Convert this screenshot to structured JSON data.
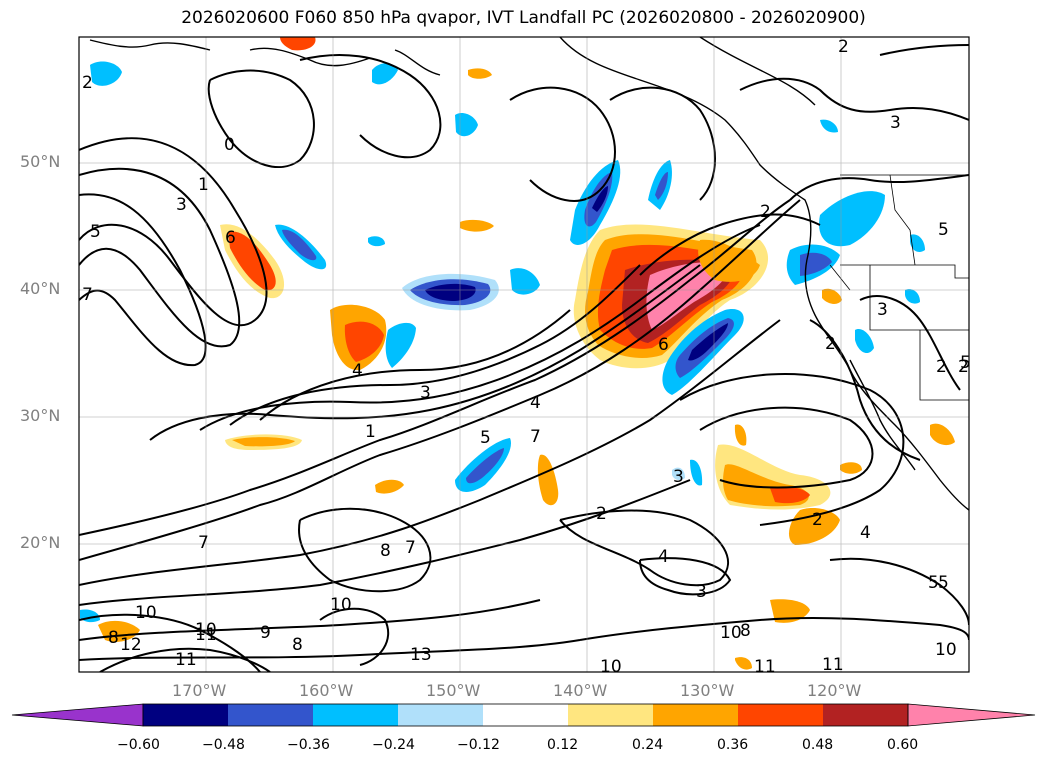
{
  "title": "2026020600 F060 850 hPa qvapor, IVT Landfall PC (2026020800 - 2026020900)",
  "lat_labels": [
    "50°N",
    "40°N",
    "30°N",
    "20°N"
  ],
  "lon_labels": [
    "170°W",
    "160°W",
    "150°W",
    "140°W",
    "130°W",
    "120°W"
  ],
  "colorbar": {
    "ticks": [
      "−0.60",
      "−0.48",
      "−0.36",
      "−0.24",
      "−0.12",
      "0.12",
      "0.24",
      "0.36",
      "0.48",
      "0.60"
    ],
    "colors": [
      "#9933cc",
      "#000080",
      "#3355cc",
      "#00bfff",
      "#b0e0fa",
      "#ffffff",
      "#ffe680",
      "#ffa500",
      "#ff4500",
      "#b22222",
      "#ff82ab"
    ]
  },
  "contour_labels": [
    "2",
    "2",
    "5",
    "0",
    "1",
    "3",
    "6",
    "7",
    "2",
    "2",
    "4",
    "3",
    "4",
    "1",
    "5",
    "7",
    "3",
    "2",
    "2",
    "6",
    "3",
    "4",
    "3",
    "4",
    "5",
    "3",
    "2",
    "2",
    "5",
    "5",
    "7",
    "8",
    "7",
    "10",
    "10",
    "10",
    "9",
    "8",
    "12",
    "11",
    "13",
    "8",
    "11",
    "10",
    "8",
    "10",
    "11",
    "11",
    "10",
    "5"
  ]
}
